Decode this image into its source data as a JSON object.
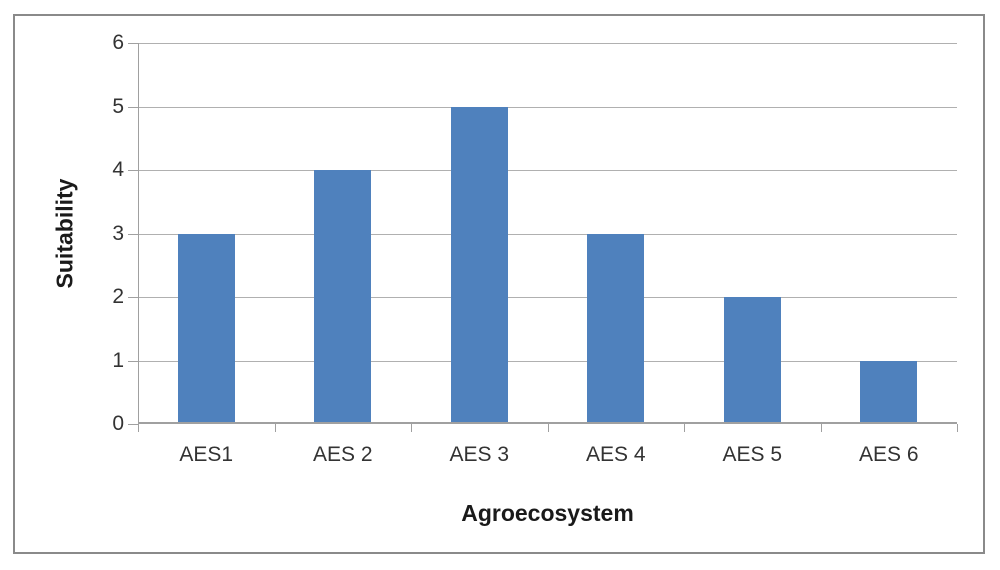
{
  "figure": {
    "background_color": "#ffffff",
    "frame_border_color": "#8a8a8a"
  },
  "chart_data": {
    "type": "bar",
    "title": "",
    "categories": [
      "AES1",
      "AES 2",
      "AES 3",
      "AES 4",
      "AES 5",
      "AES 6"
    ],
    "values": [
      3,
      4,
      5,
      3,
      2,
      1
    ],
    "xlabel": "Agroecosystem",
    "ylabel": "Suitability",
    "ylim": [
      0,
      6
    ],
    "yticks": [
      0,
      1,
      2,
      3,
      4,
      5,
      6
    ],
    "grid": "horizontal",
    "legend_position": "none",
    "bar_color": "#4f81bd",
    "gridline_color": "#b0b0b0",
    "axis_line_color": "#a0a0a0",
    "tick_label_color": "#333333",
    "axis_title_color": "#1a1a1a"
  }
}
